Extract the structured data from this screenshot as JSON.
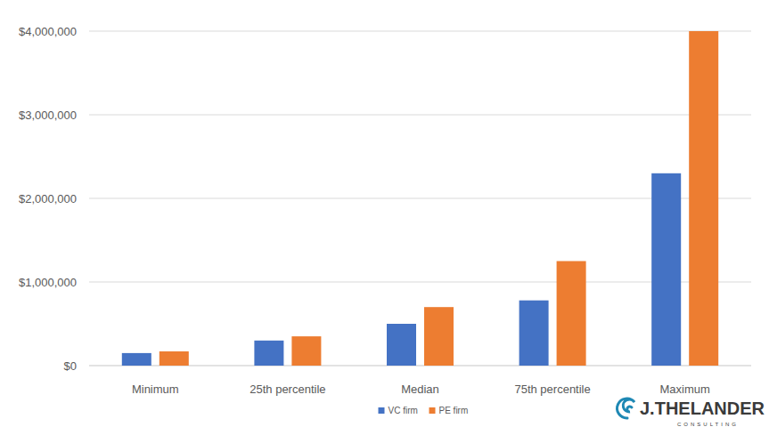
{
  "chart_data": {
    "type": "bar",
    "categories": [
      "Minimum",
      "25th percentile",
      "Median",
      "75th percentile",
      "Maximum"
    ],
    "series": [
      {
        "name": "VC firm",
        "color": "#4472c4",
        "values": [
          150000,
          300000,
          500000,
          780000,
          2300000
        ]
      },
      {
        "name": "PE firm",
        "color": "#ed7d31",
        "values": [
          170000,
          350000,
          700000,
          1250000,
          4000000
        ]
      }
    ],
    "ylim": [
      0,
      4000000
    ],
    "yticks": [
      {
        "value": 0,
        "label": "$0"
      },
      {
        "value": 1000000,
        "label": "$1,000,000"
      },
      {
        "value": 2000000,
        "label": "$2,000,000"
      },
      {
        "value": 3000000,
        "label": "$3,000,000"
      },
      {
        "value": 4000000,
        "label": "$4,000,000"
      }
    ],
    "grid": true,
    "legend": "bottom"
  },
  "logo": {
    "name": "J.THELANDER",
    "tagline": "CONSULTING"
  }
}
